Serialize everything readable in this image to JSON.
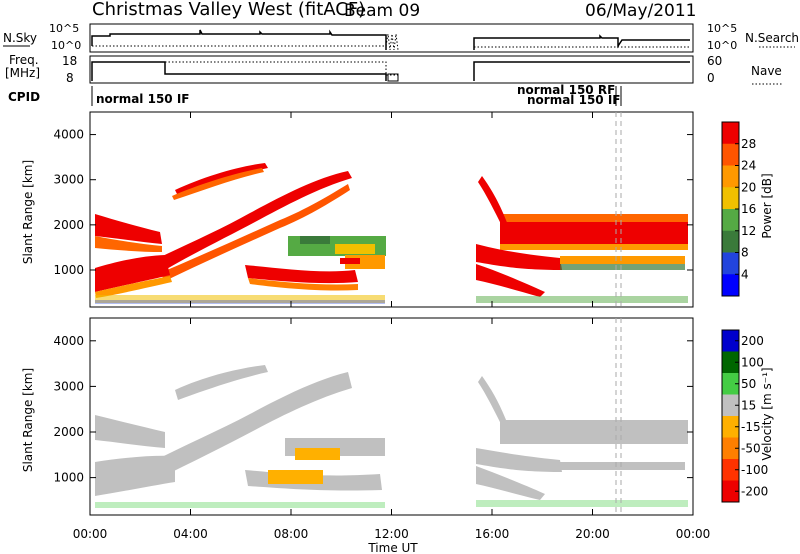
{
  "header": {
    "title": "Christmas Valley West (fitACF)",
    "beam": "Beam 09",
    "date": "06/May/2011"
  },
  "labels": {
    "nsky": "N.Sky",
    "nsearch": "N.Search",
    "freq_line1": "Freq.",
    "freq_line2": "[MHz]",
    "nave": "Nave",
    "cpid": "CPID",
    "ylabel": "Slant Range [km]",
    "xlabel": "Time UT",
    "power_label": "Power [dB]",
    "velocity_label": "Velocity [m s⁻¹]"
  },
  "noise_panel": {
    "left_ticks": [
      "10^5",
      "10^0"
    ],
    "right_ticks": [
      "10^5",
      "10^0"
    ]
  },
  "freq_panel": {
    "left_ticks": [
      "18",
      "8"
    ],
    "right_ticks": [
      "60",
      "0"
    ]
  },
  "cpid_labels": [
    "normal 150 IF",
    "normal 150 RF",
    "normal 150 IF"
  ],
  "colors": {
    "power_scale": [
      "#0000ff",
      "#2244dd",
      "#3a7a3a",
      "#55aa44",
      "#f0c000",
      "#ff9900",
      "#ff5500",
      "#ee0000"
    ],
    "velocity_scale": [
      "#0000cc",
      "#006600",
      "#44cc44",
      "#c0c0c0",
      "#ffb000",
      "#ff7f00",
      "#ff3300",
      "#ee0000"
    ]
  },
  "chart_data": {
    "type": "heatmap",
    "x_axis": {
      "label": "Time UT",
      "range": [
        "00:00",
        "24:00"
      ],
      "ticks": [
        "00:00",
        "04:00",
        "08:00",
        "12:00",
        "16:00",
        "20:00",
        "00:00"
      ],
      "data_gap": [
        "11:55",
        "15:20"
      ]
    },
    "y_axis": {
      "label": "Slant Range [km]",
      "range": [
        180,
        4500
      ],
      "ticks": [
        1000,
        2000,
        3000,
        4000
      ]
    },
    "power_colorbar": {
      "label": "Power [dB]",
      "ticks": [
        4,
        8,
        12,
        16,
        20,
        24,
        28
      ],
      "range": [
        0,
        32
      ]
    },
    "velocity_colorbar": {
      "label": "Velocity [m s⁻¹]",
      "ticks": [
        200,
        100,
        50,
        15,
        -15,
        -50,
        -100,
        -200
      ]
    }
  }
}
